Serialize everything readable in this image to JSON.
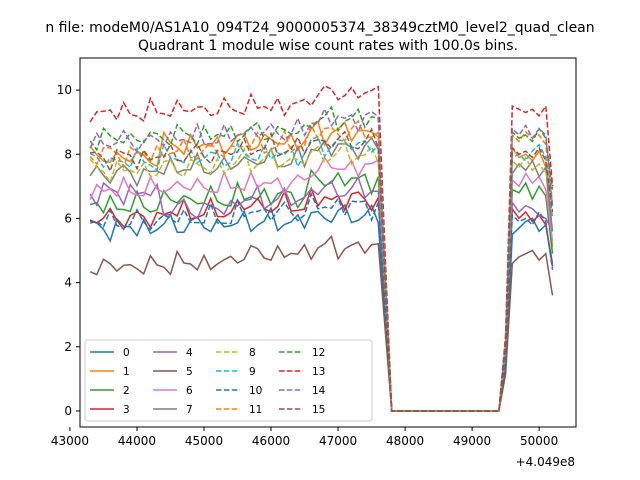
{
  "figure": {
    "suptitle": "n file: modeM0/AS1A10_094T24_9000005374_38349cztM0_level2_quad_clean",
    "title": "Quadrant 1 module wise count rates with 100.0s bins."
  },
  "chart_data": {
    "type": "line",
    "title": "Quadrant 1 module wise count rates with 100.0s bins.",
    "xlabel": "",
    "ylabel": "",
    "x_offset_label": "+4.049e8",
    "xlim": [
      43150,
      50550
    ],
    "ylim": [
      -0.5,
      11.0
    ],
    "xticks": [
      43000,
      44000,
      45000,
      46000,
      47000,
      48000,
      49000,
      50000
    ],
    "xtick_labels": [
      "43000",
      "44000",
      "45000",
      "46000",
      "47000",
      "48000",
      "49000",
      "50000"
    ],
    "yticks": [
      0,
      2,
      4,
      6,
      8,
      10
    ],
    "ytick_labels": [
      "0",
      "2",
      "4",
      "6",
      "8",
      "10"
    ],
    "grid": false,
    "legend_placement": "lower-left",
    "x_start": 43300,
    "bin_seconds": 100,
    "gap_interval_x": [
      47800,
      49400
    ],
    "series": [
      {
        "name": "0",
        "color": "#1f77b4",
        "dash": "solid",
        "phase": 0.3,
        "levels": [
          5.7,
          5.8,
          5.9,
          6.1
        ],
        "post": [
          5.5,
          5.7,
          5.9,
          6.0,
          5.6,
          5.8,
          4.6
        ]
      },
      {
        "name": "1",
        "color": "#ff7f0e",
        "dash": "solid",
        "phase": 1.1,
        "levels": [
          7.9,
          8.3,
          8.4,
          8.7
        ],
        "post": [
          8.2,
          7.9,
          8.0,
          7.8,
          8.1,
          7.6,
          5.1
        ]
      },
      {
        "name": "2",
        "color": "#2ca02c",
        "dash": "solid",
        "phase": 2.0,
        "levels": [
          6.4,
          6.6,
          6.7,
          7.2
        ],
        "post": [
          6.9,
          6.8,
          7.1,
          6.6,
          7.0,
          6.7,
          4.9
        ]
      },
      {
        "name": "3",
        "color": "#d62728",
        "dash": "solid",
        "phase": 2.7,
        "levels": [
          6.0,
          6.2,
          6.4,
          6.6
        ],
        "post": [
          6.3,
          6.0,
          6.2,
          5.9,
          6.1,
          5.8,
          4.5
        ]
      },
      {
        "name": "4",
        "color": "#9467bd",
        "dash": "solid",
        "phase": 3.4,
        "levels": [
          6.8,
          6.3,
          6.6,
          6.9
        ],
        "post": [
          6.5,
          6.2,
          6.4,
          6.3,
          6.1,
          6.0,
          5.6
        ]
      },
      {
        "name": "5",
        "color": "#8c564b",
        "dash": "solid",
        "phase": 4.2,
        "levels": [
          4.5,
          4.6,
          4.9,
          5.1
        ],
        "post": [
          4.6,
          4.8,
          4.9,
          5.0,
          4.7,
          4.9,
          3.6
        ]
      },
      {
        "name": "6",
        "color": "#e377c2",
        "dash": "solid",
        "phase": 5.0,
        "levels": [
          6.9,
          7.0,
          7.1,
          7.6
        ],
        "post": [
          7.2,
          7.0,
          7.4,
          7.1,
          7.3,
          6.9,
          5.3
        ]
      },
      {
        "name": "7",
        "color": "#7f7f7f",
        "dash": "solid",
        "phase": 5.8,
        "levels": [
          7.4,
          7.6,
          7.8,
          8.2
        ],
        "post": [
          7.4,
          7.7,
          7.5,
          7.8,
          7.3,
          7.6,
          5.6
        ]
      },
      {
        "name": "8",
        "color": "#bcbd22",
        "dash": "dashed",
        "phase": 0.6,
        "levels": [
          7.5,
          7.6,
          7.8,
          8.0
        ],
        "post": [
          7.8,
          7.6,
          7.9,
          7.5,
          7.7,
          7.4,
          6.7
        ]
      },
      {
        "name": "9",
        "color": "#17becf",
        "dash": "dashed",
        "phase": 1.5,
        "levels": [
          7.8,
          7.9,
          8.0,
          8.3
        ],
        "post": [
          7.9,
          8.0,
          7.8,
          8.1,
          8.3,
          7.9,
          6.0
        ]
      },
      {
        "name": "10",
        "color": "#1f77b4",
        "dash": "dashed",
        "phase": 2.3,
        "levels": [
          5.9,
          6.0,
          6.2,
          6.4
        ],
        "post": [
          6.1,
          5.9,
          6.0,
          5.8,
          6.2,
          5.9,
          4.4
        ]
      },
      {
        "name": "11",
        "color": "#ff7f0e",
        "dash": "dashed",
        "phase": 3.1,
        "levels": [
          8.0,
          8.1,
          8.3,
          8.7
        ],
        "post": [
          8.6,
          8.4,
          8.7,
          8.5,
          8.6,
          8.3,
          6.4
        ]
      },
      {
        "name": "12",
        "color": "#2ca02c",
        "dash": "dashed",
        "phase": 3.9,
        "levels": [
          8.5,
          8.6,
          8.7,
          9.1
        ],
        "post": [
          8.7,
          8.5,
          8.6,
          8.4,
          8.8,
          8.5,
          6.9
        ]
      },
      {
        "name": "13",
        "color": "#d62728",
        "dash": "dashed",
        "phase": 4.7,
        "levels": [
          9.3,
          9.4,
          9.5,
          9.9
        ],
        "post": [
          9.5,
          9.4,
          9.3,
          9.4,
          9.2,
          9.5,
          7.0
        ]
      },
      {
        "name": "14",
        "color": "#9467bd",
        "dash": "dashed",
        "phase": 5.5,
        "levels": [
          8.4,
          8.5,
          8.7,
          9.1
        ],
        "post": [
          8.8,
          8.6,
          8.9,
          8.5,
          8.8,
          8.6,
          6.4
        ]
      },
      {
        "name": "15",
        "color": "#8c564b",
        "dash": "dashed",
        "phase": 6.2,
        "levels": [
          7.9,
          8.0,
          8.2,
          8.4
        ],
        "post": [
          8.2,
          8.0,
          8.1,
          7.9,
          8.2,
          7.8,
          6.2
        ]
      }
    ]
  }
}
